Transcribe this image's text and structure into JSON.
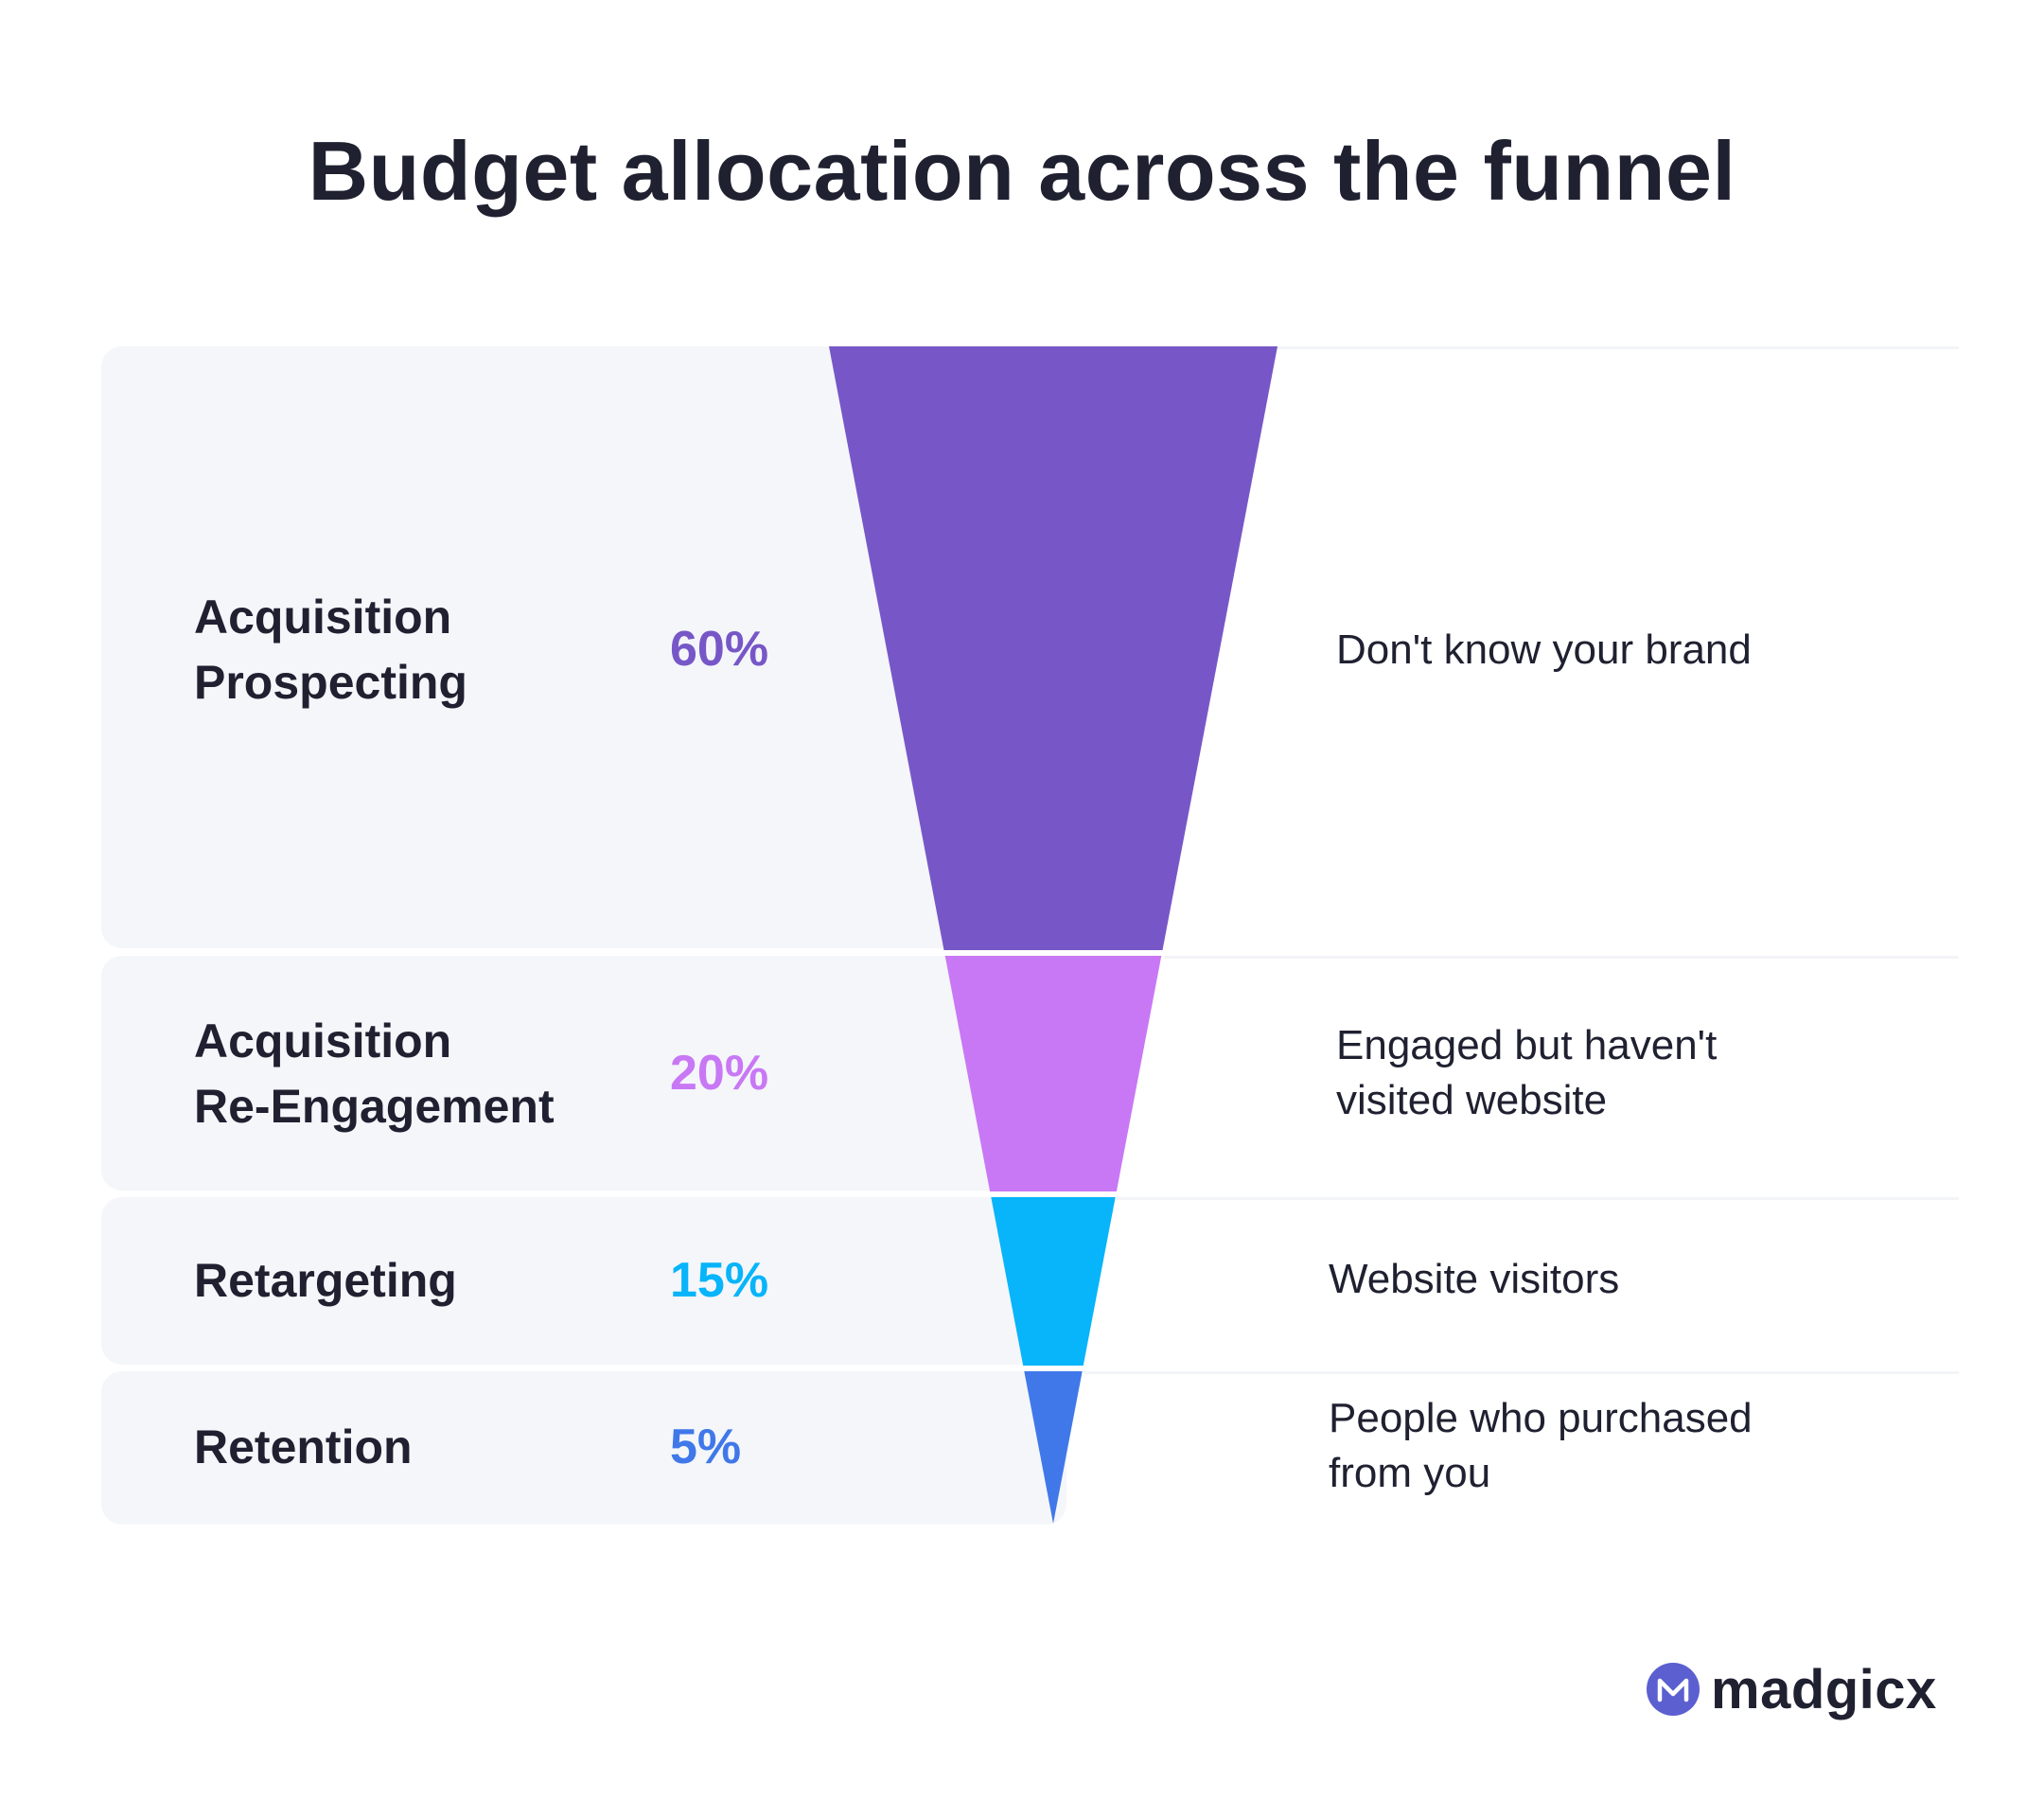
{
  "title": "Budget allocation across the funnel",
  "chart_data": {
    "type": "funnel",
    "title": "Budget allocation across the funnel",
    "stages": [
      {
        "label_line1": "Acquisition",
        "label_line2": "Prospecting",
        "percent": "60%",
        "value": 60,
        "color": "#7757c7",
        "pct_color": "#7757c7",
        "desc_line1": "Don't know your brand",
        "desc_line2": ""
      },
      {
        "label_line1": "Acquisition",
        "label_line2": "Re-Engagement",
        "percent": "20%",
        "value": 20,
        "color": "#c878f5",
        "pct_color": "#c878f5",
        "desc_line1": "Engaged but haven't",
        "desc_line2": "visited website"
      },
      {
        "label_line1": "Retargeting",
        "label_line2": "",
        "percent": "15%",
        "value": 15,
        "color": "#08b4fa",
        "pct_color": "#08b4fa",
        "desc_line1": "Website visitors",
        "desc_line2": ""
      },
      {
        "label_line1": "Retention",
        "label_line2": "",
        "percent": "5%",
        "value": 5,
        "color": "#4078ea",
        "pct_color": "#4078ea",
        "desc_line1": "People who purchased",
        "desc_line2": "from you"
      }
    ]
  },
  "brand": {
    "name": "madgicx",
    "color": "#5b5fd0"
  }
}
